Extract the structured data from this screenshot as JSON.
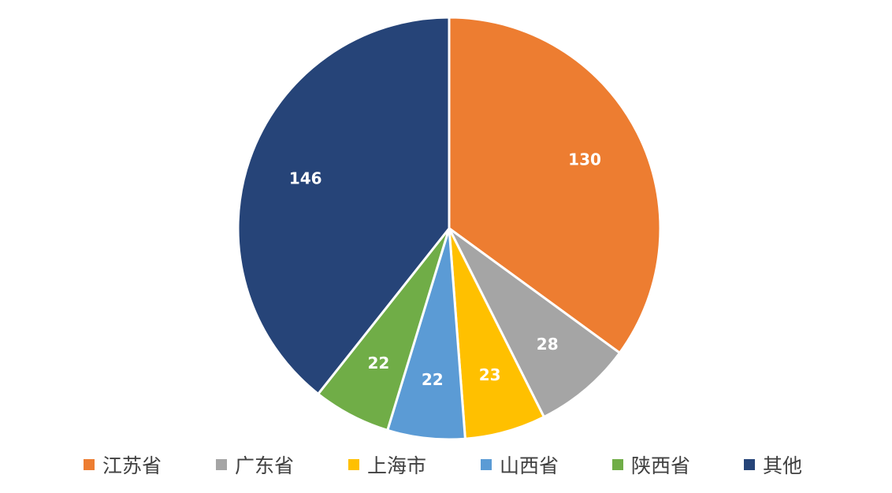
{
  "chart_data": {
    "type": "pie",
    "start_angle_deg": 0,
    "direction": "clockwise",
    "legend_position": "bottom",
    "slices": [
      {
        "name": "江苏省",
        "value": 130,
        "label": "130",
        "color": "#ED7D31"
      },
      {
        "name": "广东省",
        "value": 28,
        "label": "28",
        "color": "#A5A5A5"
      },
      {
        "name": "上海市",
        "value": 23,
        "label": "23",
        "color": "#FFC000"
      },
      {
        "name": "山西省",
        "value": 22,
        "label": "22",
        "color": "#5B9BD5"
      },
      {
        "name": "陕西省",
        "value": 22,
        "label": "22",
        "color": "#70AD47"
      },
      {
        "name": "其他",
        "value": 146,
        "label": "146",
        "color": "#264478"
      }
    ]
  }
}
